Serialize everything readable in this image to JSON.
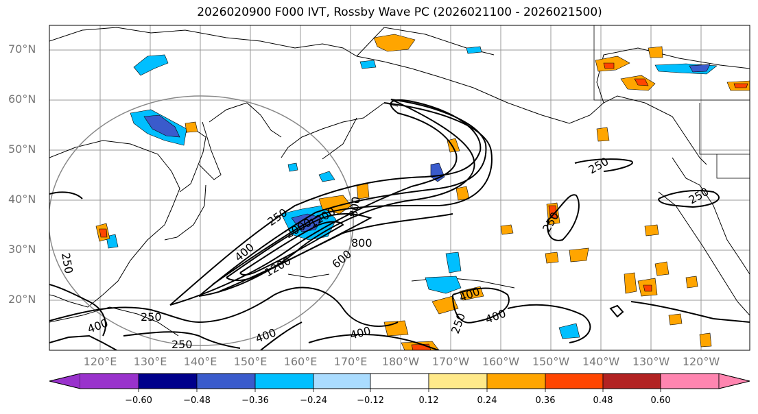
{
  "title": "2026020900 F000 IVT, Rossby Wave PC (2026021100 - 2026021500)",
  "lat_labels": [
    "70°N",
    "60°N",
    "50°N",
    "40°N",
    "30°N",
    "20°N"
  ],
  "lon_labels": [
    "120°E",
    "130°E",
    "140°E",
    "150°E",
    "160°E",
    "170°E",
    "180°W",
    "170°W",
    "160°W",
    "150°W",
    "140°W",
    "130°W",
    "120°W"
  ],
  "ivt_contour_labels": [
    "250",
    "250",
    "250",
    "250",
    "250",
    "250",
    "250",
    "250",
    "400",
    "400",
    "400",
    "400",
    "400",
    "400",
    "600",
    "800",
    "800",
    "1200",
    "1200",
    "2000"
  ],
  "colorbar": {
    "ticks": [
      "−0.60",
      "−0.48",
      "−0.36",
      "−0.24",
      "−0.12",
      "0.12",
      "0.24",
      "0.36",
      "0.48",
      "0.60"
    ],
    "colors": [
      "#9932cc",
      "#00008b",
      "#3a5bcc",
      "#00bfff",
      "#aadcff",
      "#ffffff",
      "#ffe98a",
      "#ffa500",
      "#ff4500",
      "#b22222",
      "#ff85b0"
    ]
  }
}
